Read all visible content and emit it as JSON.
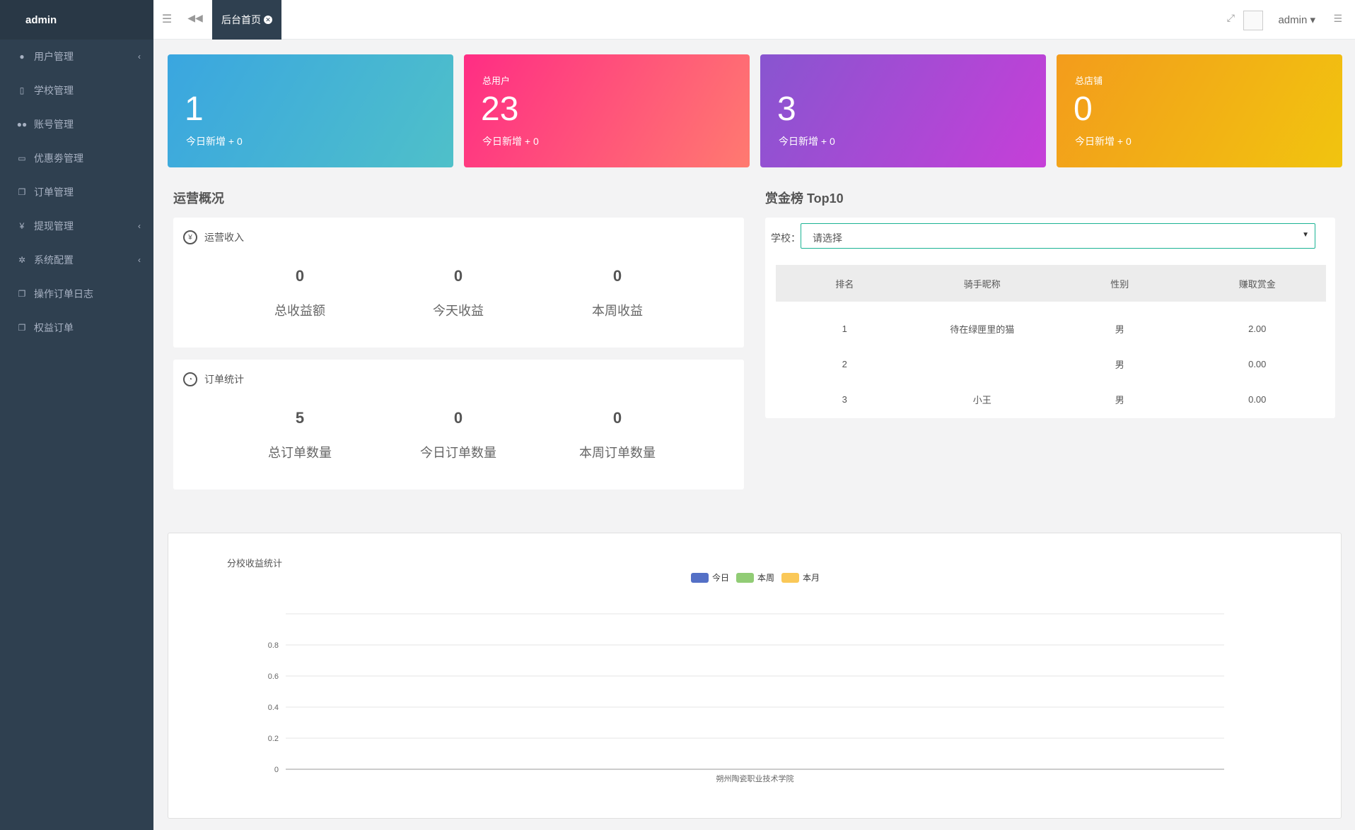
{
  "brand": "admin",
  "sidebar": {
    "items": [
      {
        "label": "用户管理",
        "icon": "user-icon",
        "has_sub": true
      },
      {
        "label": "学校管理",
        "icon": "building-icon",
        "has_sub": false
      },
      {
        "label": "账号管理",
        "icon": "users-icon",
        "has_sub": false
      },
      {
        "label": "优惠劵管理",
        "icon": "money-icon",
        "has_sub": false
      },
      {
        "label": "订单管理",
        "icon": "copy-icon",
        "has_sub": false
      },
      {
        "label": "提现管理",
        "icon": "yen-icon",
        "has_sub": true
      },
      {
        "label": "系统配置",
        "icon": "gear-icon",
        "has_sub": true
      },
      {
        "label": "操作订单日志",
        "icon": "copy-icon",
        "has_sub": false
      },
      {
        "label": "权益订单",
        "icon": "copy-icon",
        "has_sub": false
      }
    ]
  },
  "topbar": {
    "tab_label": "后台首页",
    "user_name": "admin"
  },
  "cards": [
    {
      "label": "",
      "value": "1",
      "sub": "今日新增 + 0"
    },
    {
      "label": "总用户",
      "value": "23",
      "sub": "今日新增 + 0"
    },
    {
      "label": "",
      "value": "3",
      "sub": "今日新增 + 0"
    },
    {
      "label": "总店铺",
      "value": "0",
      "sub": "今日新增 + 0"
    }
  ],
  "operations": {
    "title": "运营概况",
    "income": {
      "title": "运营收入",
      "metrics": [
        {
          "value": "0",
          "label": "总收益额"
        },
        {
          "value": "0",
          "label": "今天收益"
        },
        {
          "value": "0",
          "label": "本周收益"
        }
      ]
    },
    "orders": {
      "title": "订单统计",
      "metrics": [
        {
          "value": "5",
          "label": "总订单数量"
        },
        {
          "value": "0",
          "label": "今日订单数量"
        },
        {
          "value": "0",
          "label": "本周订单数量"
        }
      ]
    }
  },
  "ranking": {
    "title": "赏金榜 Top10",
    "school_label": "学校：",
    "school_value": "请选择",
    "headers": [
      "排名",
      "骑手昵称",
      "性别",
      "赚取赏金"
    ],
    "rows": [
      [
        "1",
        "待在绿匣里的猫",
        "男",
        "2.00"
      ],
      [
        "2",
        "",
        "男",
        "0.00"
      ],
      [
        "3",
        "小王",
        "男",
        "0.00"
      ]
    ]
  },
  "chart_data": {
    "type": "bar",
    "title": "分校收益统计",
    "categories": [
      "朔州陶瓷职业技术学院"
    ],
    "series": [
      {
        "name": "今日",
        "values": [
          0
        ],
        "color": "#5470c6"
      },
      {
        "name": "本周",
        "values": [
          0
        ],
        "color": "#91cc75"
      },
      {
        "name": "本月",
        "values": [
          0
        ],
        "color": "#fac858"
      }
    ],
    "ylim": [
      0,
      1
    ],
    "yticks": [
      "0",
      "0.2",
      "0.4",
      "0.6",
      "0.8"
    ],
    "legend": "top-center",
    "grid": true
  }
}
